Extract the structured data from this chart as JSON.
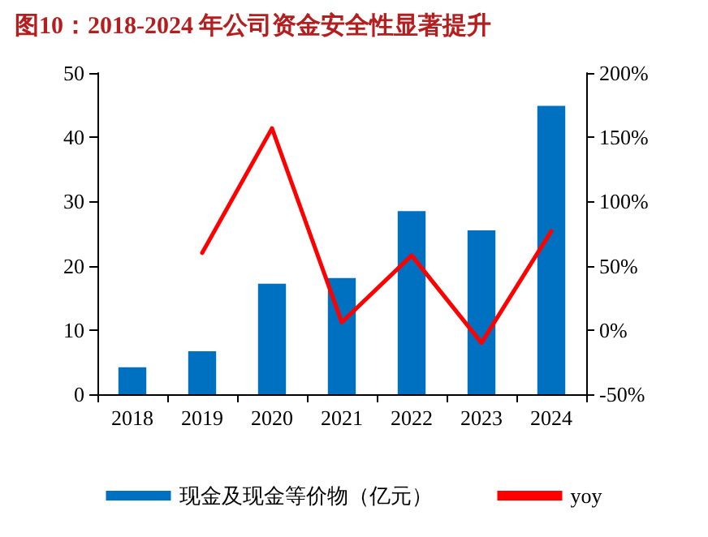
{
  "chart_data": {
    "type": "bar",
    "title": "图10：2018-2024 年公司资金安全性显著提升",
    "categories": [
      "2018",
      "2019",
      "2020",
      "2021",
      "2022",
      "2023",
      "2024"
    ],
    "series": [
      {
        "name": "现金及现金等价物（亿元）",
        "color": "#0070c0",
        "values": [
          4.2,
          6.7,
          17.2,
          18.1,
          28.5,
          25.5,
          44.9
        ]
      },
      {
        "name": "yoy",
        "type": "line",
        "axis": "y2",
        "color": "#ff0000",
        "values": [
          null,
          60,
          157,
          6,
          58,
          -10,
          77
        ]
      }
    ],
    "ylim": [
      0,
      50
    ],
    "yticks": [
      0,
      10,
      20,
      30,
      40,
      50
    ],
    "y2lim": [
      -50,
      200
    ],
    "y2ticks": [
      {
        "value": -50,
        "label": "-50%"
      },
      {
        "value": 0,
        "label": "0%"
      },
      {
        "value": 50,
        "label": "50%"
      },
      {
        "value": 100,
        "label": "100%"
      },
      {
        "value": 150,
        "label": "150%"
      },
      {
        "value": 200,
        "label": "200%"
      }
    ],
    "legend": "bottom",
    "grid": false,
    "marker": "none",
    "line_style": "solid"
  }
}
